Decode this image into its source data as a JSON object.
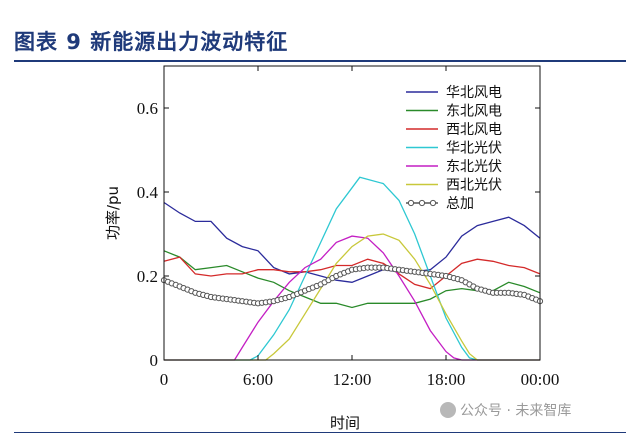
{
  "figure": {
    "title": "图表 9 新能源出力波动特征",
    "watermark": "公众号 · 未来智库"
  },
  "chart_data": {
    "type": "line",
    "xlabel": "时间",
    "ylabel": "功率/pu",
    "xlim": [
      0,
      24
    ],
    "ylim": [
      0,
      0.7
    ],
    "x_ticks": [
      {
        "value": 0,
        "label": "0"
      },
      {
        "value": 6,
        "label": "6:00"
      },
      {
        "value": 12,
        "label": "12:00"
      },
      {
        "value": 18,
        "label": "18:00"
      },
      {
        "value": 24,
        "label": "00:00"
      }
    ],
    "y_ticks": [
      {
        "value": 0,
        "label": "0"
      },
      {
        "value": 0.2,
        "label": "0.2"
      },
      {
        "value": 0.4,
        "label": "0.4"
      },
      {
        "value": 0.6,
        "label": "0.6"
      }
    ],
    "legend_position": "top-right",
    "series": [
      {
        "name": "华北风电",
        "color": "#2b2b9b",
        "marker": "none",
        "points": [
          [
            0,
            0.375
          ],
          [
            1,
            0.35
          ],
          [
            2,
            0.33
          ],
          [
            3,
            0.33
          ],
          [
            4,
            0.29
          ],
          [
            5,
            0.27
          ],
          [
            6,
            0.26
          ],
          [
            7,
            0.22
          ],
          [
            8,
            0.205
          ],
          [
            9,
            0.21
          ],
          [
            10,
            0.2
          ],
          [
            11,
            0.19
          ],
          [
            12,
            0.185
          ],
          [
            13,
            0.2
          ],
          [
            14,
            0.215
          ],
          [
            15,
            0.21
          ],
          [
            16,
            0.21
          ],
          [
            17,
            0.215
          ],
          [
            18,
            0.245
          ],
          [
            19,
            0.295
          ],
          [
            20,
            0.32
          ],
          [
            21,
            0.33
          ],
          [
            22,
            0.34
          ],
          [
            23,
            0.32
          ],
          [
            24,
            0.29
          ]
        ]
      },
      {
        "name": "东北风电",
        "color": "#2a8a2a",
        "marker": "none",
        "points": [
          [
            0,
            0.26
          ],
          [
            1,
            0.245
          ],
          [
            2,
            0.215
          ],
          [
            3,
            0.22
          ],
          [
            4,
            0.225
          ],
          [
            5,
            0.21
          ],
          [
            6,
            0.195
          ],
          [
            7,
            0.185
          ],
          [
            8,
            0.165
          ],
          [
            9,
            0.15
          ],
          [
            10,
            0.135
          ],
          [
            11,
            0.135
          ],
          [
            12,
            0.125
          ],
          [
            13,
            0.135
          ],
          [
            14,
            0.135
          ],
          [
            15,
            0.135
          ],
          [
            16,
            0.135
          ],
          [
            17,
            0.145
          ],
          [
            18,
            0.165
          ],
          [
            19,
            0.17
          ],
          [
            20,
            0.165
          ],
          [
            21,
            0.165
          ],
          [
            22,
            0.185
          ],
          [
            23,
            0.175
          ],
          [
            24,
            0.16
          ]
        ]
      },
      {
        "name": "西北风电",
        "color": "#d42a2a",
        "marker": "none",
        "points": [
          [
            0,
            0.235
          ],
          [
            1,
            0.245
          ],
          [
            2,
            0.205
          ],
          [
            3,
            0.2
          ],
          [
            4,
            0.205
          ],
          [
            5,
            0.205
          ],
          [
            6,
            0.215
          ],
          [
            7,
            0.215
          ],
          [
            8,
            0.21
          ],
          [
            9,
            0.21
          ],
          [
            10,
            0.215
          ],
          [
            11,
            0.225
          ],
          [
            12,
            0.225
          ],
          [
            13,
            0.24
          ],
          [
            14,
            0.23
          ],
          [
            15,
            0.205
          ],
          [
            16,
            0.18
          ],
          [
            17,
            0.17
          ],
          [
            18,
            0.2
          ],
          [
            19,
            0.23
          ],
          [
            20,
            0.24
          ],
          [
            21,
            0.235
          ],
          [
            22,
            0.225
          ],
          [
            23,
            0.22
          ],
          [
            24,
            0.205
          ]
        ]
      },
      {
        "name": "华北光伏",
        "color": "#2ec8d2",
        "marker": "none",
        "points": [
          [
            0,
            0
          ],
          [
            5.5,
            0
          ],
          [
            6,
            0.01
          ],
          [
            7,
            0.06
          ],
          [
            8,
            0.12
          ],
          [
            9,
            0.2
          ],
          [
            10,
            0.28
          ],
          [
            11,
            0.36
          ],
          [
            12,
            0.41
          ],
          [
            12.5,
            0.435
          ],
          [
            13,
            0.43
          ],
          [
            14,
            0.42
          ],
          [
            15,
            0.38
          ],
          [
            16,
            0.3
          ],
          [
            17,
            0.2
          ],
          [
            18,
            0.1
          ],
          [
            19,
            0.03
          ],
          [
            19.5,
            0.005
          ],
          [
            20,
            0
          ],
          [
            24,
            0
          ]
        ]
      },
      {
        "name": "东北光伏",
        "color": "#c41fc4",
        "marker": "none",
        "points": [
          [
            0,
            0
          ],
          [
            4.5,
            0
          ],
          [
            5,
            0.03
          ],
          [
            6,
            0.09
          ],
          [
            7,
            0.14
          ],
          [
            8,
            0.185
          ],
          [
            9,
            0.22
          ],
          [
            10,
            0.24
          ],
          [
            11,
            0.28
          ],
          [
            12,
            0.295
          ],
          [
            13,
            0.29
          ],
          [
            14,
            0.255
          ],
          [
            15,
            0.2
          ],
          [
            16,
            0.14
          ],
          [
            17,
            0.07
          ],
          [
            18,
            0.02
          ],
          [
            18.5,
            0.005
          ],
          [
            19,
            0
          ],
          [
            24,
            0
          ]
        ]
      },
      {
        "name": "西北光伏",
        "color": "#c8c83a",
        "marker": "none",
        "points": [
          [
            0,
            0
          ],
          [
            6.5,
            0
          ],
          [
            7,
            0.015
          ],
          [
            8,
            0.05
          ],
          [
            9,
            0.11
          ],
          [
            10,
            0.17
          ],
          [
            11,
            0.23
          ],
          [
            12,
            0.27
          ],
          [
            13,
            0.295
          ],
          [
            14,
            0.3
          ],
          [
            15,
            0.285
          ],
          [
            16,
            0.24
          ],
          [
            17,
            0.18
          ],
          [
            18,
            0.11
          ],
          [
            19,
            0.045
          ],
          [
            19.5,
            0.015
          ],
          [
            20,
            0
          ],
          [
            24,
            0
          ]
        ]
      },
      {
        "name": "总加",
        "color": "#555555",
        "marker": "circle",
        "points": [
          [
            0,
            0.19
          ],
          [
            1,
            0.175
          ],
          [
            2,
            0.16
          ],
          [
            3,
            0.15
          ],
          [
            4,
            0.145
          ],
          [
            5,
            0.14
          ],
          [
            6,
            0.135
          ],
          [
            7,
            0.14
          ],
          [
            8,
            0.15
          ],
          [
            9,
            0.165
          ],
          [
            10,
            0.18
          ],
          [
            11,
            0.2
          ],
          [
            12,
            0.215
          ],
          [
            13,
            0.22
          ],
          [
            14,
            0.22
          ],
          [
            15,
            0.215
          ],
          [
            16,
            0.21
          ],
          [
            17,
            0.205
          ],
          [
            18,
            0.2
          ],
          [
            19,
            0.19
          ],
          [
            20,
            0.17
          ],
          [
            21,
            0.16
          ],
          [
            22,
            0.16
          ],
          [
            23,
            0.155
          ],
          [
            24,
            0.14
          ]
        ]
      }
    ]
  }
}
